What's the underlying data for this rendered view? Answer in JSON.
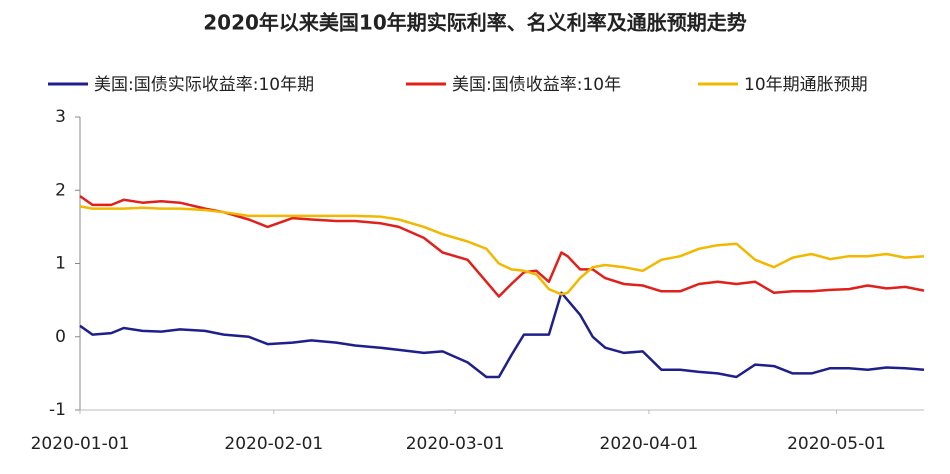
{
  "chart_data": {
    "type": "line",
    "title": "2020年以来美国10年期实际利率、名义利率及通胀预期走势",
    "x": [
      "2020-01-01",
      "2020-01-03",
      "2020-01-06",
      "2020-01-08",
      "2020-01-11",
      "2020-01-14",
      "2020-01-17",
      "2020-01-21",
      "2020-01-24",
      "2020-01-28",
      "2020-01-31",
      "2020-02-04",
      "2020-02-07",
      "2020-02-11",
      "2020-02-14",
      "2020-02-18",
      "2020-02-21",
      "2020-02-25",
      "2020-02-28",
      "2020-03-03",
      "2020-03-06",
      "2020-03-08",
      "2020-03-10",
      "2020-03-12",
      "2020-03-14",
      "2020-03-16",
      "2020-03-18",
      "2020-03-19",
      "2020-03-21",
      "2020-03-23",
      "2020-03-25",
      "2020-03-28",
      "2020-03-31",
      "2020-04-03",
      "2020-04-06",
      "2020-04-09",
      "2020-04-12",
      "2020-04-15",
      "2020-04-18",
      "2020-04-21",
      "2020-04-24",
      "2020-04-27",
      "2020-04-30",
      "2020-05-03",
      "2020-05-06",
      "2020-05-09",
      "2020-05-12",
      "2020-05-15"
    ],
    "series": [
      {
        "name": "美国:国债实际收益率:10年期",
        "color": "#1f1f8c",
        "values": [
          0.15,
          0.03,
          0.05,
          0.12,
          0.08,
          0.07,
          0.1,
          0.08,
          0.03,
          0.0,
          -0.1,
          -0.08,
          -0.05,
          -0.08,
          -0.12,
          -0.15,
          -0.18,
          -0.22,
          -0.2,
          -0.35,
          -0.55,
          -0.55,
          -0.25,
          0.03,
          0.03,
          0.03,
          0.6,
          0.5,
          0.3,
          0.0,
          -0.15,
          -0.22,
          -0.2,
          -0.45,
          -0.45,
          -0.48,
          -0.5,
          -0.55,
          -0.38,
          -0.4,
          -0.5,
          -0.5,
          -0.43,
          -0.43,
          -0.45,
          -0.42,
          -0.43,
          -0.45
        ]
      },
      {
        "name": "美国:国债收益率:10年",
        "color": "#e0201b",
        "values": [
          1.92,
          1.8,
          1.8,
          1.87,
          1.83,
          1.85,
          1.83,
          1.75,
          1.7,
          1.6,
          1.5,
          1.62,
          1.6,
          1.58,
          1.58,
          1.55,
          1.5,
          1.35,
          1.15,
          1.05,
          0.75,
          0.55,
          0.72,
          0.88,
          0.9,
          0.75,
          1.15,
          1.1,
          0.92,
          0.92,
          0.8,
          0.72,
          0.7,
          0.62,
          0.62,
          0.72,
          0.75,
          0.72,
          0.75,
          0.6,
          0.62,
          0.62,
          0.64,
          0.65,
          0.7,
          0.66,
          0.68,
          0.63
        ]
      },
      {
        "name": "10年期通胀预期",
        "color": "#f2b800",
        "values": [
          1.78,
          1.75,
          1.75,
          1.75,
          1.76,
          1.75,
          1.75,
          1.73,
          1.7,
          1.65,
          1.65,
          1.65,
          1.65,
          1.65,
          1.65,
          1.64,
          1.6,
          1.5,
          1.4,
          1.3,
          1.2,
          1.0,
          0.92,
          0.9,
          0.85,
          0.65,
          0.58,
          0.6,
          0.8,
          0.95,
          0.98,
          0.95,
          0.9,
          1.05,
          1.1,
          1.2,
          1.25,
          1.27,
          1.05,
          0.95,
          1.08,
          1.13,
          1.06,
          1.1,
          1.1,
          1.13,
          1.08,
          1.1
        ]
      }
    ],
    "xlim": [
      "2020-01-01",
      "2020-05-15"
    ],
    "xticks": [
      "2020-01-01",
      "2020-02-01",
      "2020-03-01",
      "2020-04-01",
      "2020-05-01"
    ],
    "ylim": [
      -1,
      3
    ],
    "yticks": [
      -1,
      0,
      1,
      2,
      3
    ],
    "grid": false
  }
}
